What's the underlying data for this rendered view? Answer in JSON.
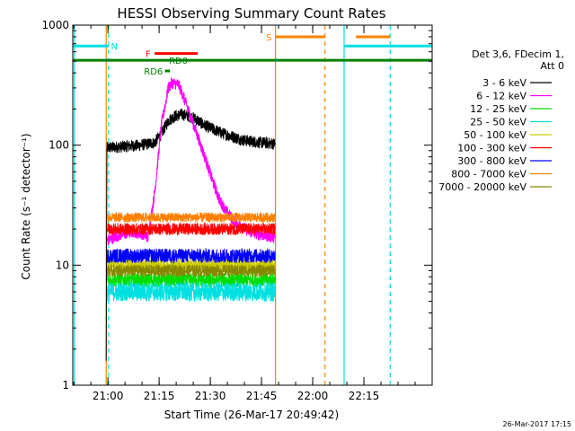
{
  "chart_data": {
    "type": "line",
    "title": "HESSI Observing Summary Count Rates",
    "xlabel": "Start Time (26-Mar-17 20:49:42)",
    "ylabel": "Count Rate (s⁻¹ detector⁻¹)",
    "yscale": "log",
    "ylim": [
      1,
      1000
    ],
    "xlim_minutes_after_start": [
      0,
      105.3
    ],
    "x_ticks": [
      {
        "label": "21:00",
        "min": 10.3
      },
      {
        "label": "21:15",
        "min": 25.3
      },
      {
        "label": "21:30",
        "min": 40.3
      },
      {
        "label": "21:45",
        "min": 55.3
      },
      {
        "label": "22:00",
        "min": 70.3
      },
      {
        "label": "22:15",
        "min": 85.3
      }
    ],
    "y_ticks": [
      {
        "label": "1",
        "value": 1
      },
      {
        "label": "10",
        "value": 10
      },
      {
        "label": "100",
        "value": 100
      },
      {
        "label": "1000",
        "value": 1000
      }
    ],
    "legend": {
      "position": "right",
      "header": [
        "Det 3,6, FDecim 1,",
        "Att 0"
      ],
      "entries": [
        {
          "label": "3 - 6 keV",
          "color": "#000000"
        },
        {
          "label": "6 - 12 keV",
          "color": "#ff00ff"
        },
        {
          "label": "12 - 25 keV",
          "color": "#00dd00"
        },
        {
          "label": "25 - 50 keV",
          "color": "#00e0e0"
        },
        {
          "label": "50 - 100 keV",
          "color": "#cccc00"
        },
        {
          "label": "100 - 300 keV",
          "color": "#ff0000"
        },
        {
          "label": "300 - 800 keV",
          "color": "#0000ff"
        },
        {
          "label": "800 - 7000 keV",
          "color": "#ff8000"
        },
        {
          "label": "7000 - 20000 keV",
          "color": "#888800"
        }
      ]
    },
    "series": [
      {
        "name": "3 - 6 keV",
        "color": "#000000",
        "noise": 0.05,
        "points": [
          [
            9.8,
            1.6
          ],
          [
            10.0,
            95
          ],
          [
            20,
            100
          ],
          [
            24,
            105
          ],
          [
            26,
            125
          ],
          [
            28,
            160
          ],
          [
            30,
            175
          ],
          [
            32,
            180
          ],
          [
            34,
            175
          ],
          [
            36,
            165
          ],
          [
            38,
            150
          ],
          [
            40,
            140
          ],
          [
            44,
            125
          ],
          [
            50,
            110
          ],
          [
            55,
            105
          ],
          [
            59,
            103
          ],
          [
            59.3,
            103
          ]
        ]
      },
      {
        "name": "6 - 12 keV",
        "color": "#ff00ff",
        "noise": 0.05,
        "points": [
          [
            10.0,
            16
          ],
          [
            14,
            18
          ],
          [
            18,
            19
          ],
          [
            21,
            18
          ],
          [
            22,
            17
          ],
          [
            24,
            40
          ],
          [
            26,
            150
          ],
          [
            28,
            300
          ],
          [
            29,
            330
          ],
          [
            31,
            320
          ],
          [
            33,
            230
          ],
          [
            35,
            160
          ],
          [
            37,
            110
          ],
          [
            39,
            75
          ],
          [
            41,
            50
          ],
          [
            43,
            35
          ],
          [
            45,
            28
          ],
          [
            48,
            22
          ],
          [
            52,
            19
          ],
          [
            55,
            18
          ],
          [
            59.3,
            17
          ]
        ]
      },
      {
        "name": "12 - 25 keV",
        "color": "#00dd00",
        "noise": 0.06,
        "points": [
          [
            10.0,
            7.5
          ],
          [
            59.3,
            7.5
          ]
        ]
      },
      {
        "name": "25 - 50 keV",
        "color": "#00e0e0",
        "noise": 0.08,
        "points": [
          [
            10.0,
            6.0
          ],
          [
            59.3,
            6.0
          ]
        ]
      },
      {
        "name": "50 - 100 keV",
        "color": "#cccc00",
        "noise": 0.06,
        "points": [
          [
            10.0,
            10.0
          ],
          [
            59.3,
            10.0
          ]
        ]
      },
      {
        "name": "100 - 300 keV",
        "color": "#ff0000",
        "noise": 0.05,
        "points": [
          [
            10.0,
            20
          ],
          [
            59.3,
            20
          ]
        ]
      },
      {
        "name": "300 - 800 keV",
        "color": "#0000ff",
        "noise": 0.06,
        "points": [
          [
            10.0,
            12
          ],
          [
            59.3,
            12
          ]
        ]
      },
      {
        "name": "800 - 7000 keV",
        "color": "#ff8000",
        "noise": 0.04,
        "points": [
          [
            10.0,
            25
          ],
          [
            59.3,
            25
          ]
        ]
      },
      {
        "name": "7000 - 20000 keV",
        "color": "#888800",
        "noise": 0.05,
        "points": [
          [
            10.0,
            9.0
          ],
          [
            59.3,
            9.0
          ]
        ]
      }
    ],
    "flag_bars": [
      {
        "label": "N",
        "color": "#00e0e0",
        "value": 670,
        "segments": [
          [
            0,
            10.5
          ],
          [
            79.5,
            105.3
          ]
        ]
      },
      {
        "label": "S",
        "color": "#ff8000",
        "value": 800,
        "segments": [
          [
            59.4,
            73.9
          ],
          [
            83.0,
            93.0
          ]
        ]
      },
      {
        "label": "F",
        "color": "#ff0000",
        "value": 580,
        "segments": [
          [
            24.0,
            36.6
          ]
        ]
      },
      {
        "label": "",
        "color": "#008000",
        "value": 510,
        "segments": [
          [
            0,
            105.3
          ]
        ]
      },
      {
        "label": "RD0",
        "color": "#008000",
        "value": 510,
        "segments": []
      },
      {
        "label": "RD6",
        "color": "#008000",
        "value": 415,
        "segments": [
          [
            27.0,
            28.5
          ]
        ]
      }
    ],
    "vertical_lines": [
      {
        "min": 0.5,
        "color": "#00e0e0",
        "style": "solid"
      },
      {
        "min": 10.5,
        "color": "#00e0e0",
        "style": "dashed"
      },
      {
        "min": 9.8,
        "color": "#ff8000",
        "style": "solid"
      },
      {
        "min": 59.4,
        "color": "#ff8000",
        "style": "solid"
      },
      {
        "min": 73.9,
        "color": "#ff8000",
        "style": "dashed"
      },
      {
        "min": 79.5,
        "color": "#00e0e0",
        "style": "solid"
      },
      {
        "min": 93.0,
        "color": "#00e0e0",
        "style": "dashed"
      }
    ]
  },
  "footer": {
    "timestamp": "26-Mar-2017 17:15"
  }
}
